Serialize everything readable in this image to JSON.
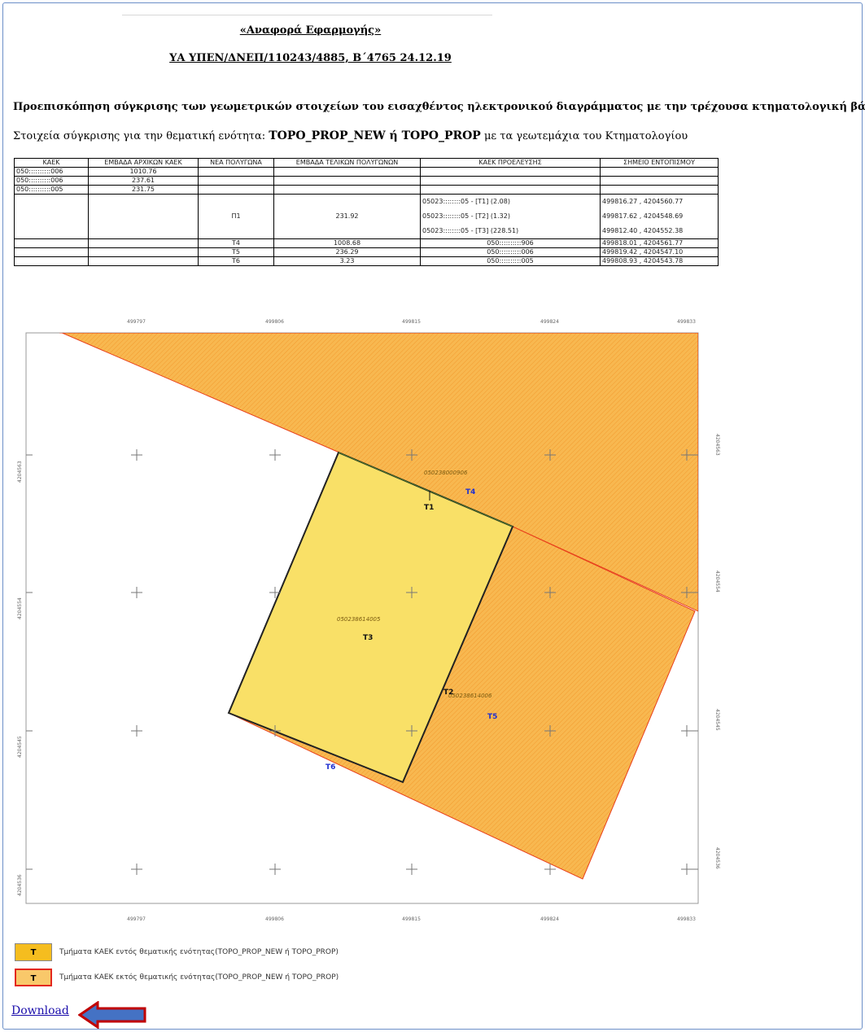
{
  "report": {
    "title": "«Αναφορά Εφαρμογής»",
    "reference": "ΥΑ ΥΠΕΝ/ΔΝΕΠ/110243/4885, Β΄4765 24.12.19",
    "heading": "Προεπισκόπηση σύγκρισης των γεωμετρικών στοιχείων του εισαχθέντος ηλεκτρονικού διαγράμματος με την τρέχουσα κτηματολογική βάση",
    "subheading_prefix": "Στοιχεία σύγκρισης για την θεματική ενότητα: ",
    "subheading_bold": "TOPO_PROP_NEW ή TOPO_PROP",
    "subheading_suffix": " με τα γεωτεμάχια του Κτηματολογίου"
  },
  "table": {
    "headers": [
      "ΚΑΕΚ",
      "ΕΜΒΑΔΑ ΑΡΧΙΚΩΝ ΚΑΕΚ",
      "ΝΕΑ ΠΟΛΥΓΩΝΑ",
      "ΕΜΒΑΔΑ ΤΕΛΙΚΩΝ ΠΟΛΥΓΩΝΩΝ",
      "ΚΑΕΚ ΠΡΟΕΛΕΥΣΗΣ",
      "ΣΗΜΕΙΟ ΕΝΤΟΠΙΣΜΟΥ"
    ],
    "rows": [
      [
        "050::::::::::006",
        "1010.76",
        "",
        "",
        "",
        ""
      ],
      [
        "050::::::::::006",
        "237.61",
        "",
        "",
        "",
        ""
      ],
      [
        "050::::::::::005",
        "231.75",
        "",
        "",
        "",
        ""
      ],
      [
        "",
        "",
        "Π1",
        "231.92",
        [
          "05023::::::::05 - [T1] (2.08)",
          "05023::::::::05 - [T2] (1.32)",
          "05023::::::::05 - [T3] (228.51)"
        ],
        [
          "499816.27 , 4204560.77",
          "499817.62 , 4204548.69",
          "499812.40 , 4204552.38"
        ]
      ],
      [
        "",
        "",
        "T4",
        "1008.68",
        "050::::::::::906",
        "499818.01 , 4204561.77"
      ],
      [
        "",
        "",
        "T5",
        "236.29",
        "050::::::::::006",
        "499819.42 , 4204547.10"
      ],
      [
        "",
        "",
        "T6",
        "3.23",
        "050::::::::::005",
        "499808.93 , 4204543.78"
      ]
    ]
  },
  "map": {
    "ticks_top": [
      "499797",
      "499806",
      "499815",
      "499824",
      "499833"
    ],
    "ticks_bottom": [
      "499797",
      "499806",
      "499815",
      "499824",
      "499833"
    ],
    "ticks_left": [
      "4204563",
      "4204554",
      "4204545",
      "4204536"
    ],
    "ticks_right": [
      "4204563",
      "4204554",
      "4204545",
      "4204536"
    ],
    "labels": {
      "T1": "T1",
      "T2": "T2",
      "T3": "T3",
      "T4": "T4",
      "T5": "T5",
      "T6": "T6",
      "kaek_top": "050238000906",
      "kaek_mid": "050238614005",
      "kaek_right": "050238614006"
    },
    "colors": {
      "inside": "#f5d94a",
      "outside": "#f8b850",
      "outside_border": "#e8401c",
      "blue_label": "#1f2fd0"
    }
  },
  "legend": {
    "item1_symbol": "T",
    "item1_text": "Τμήματα ΚΑΕΚ εντός θεματικής ενότητας(TOPO_PROP_NEW ή TOPO_PROP)",
    "item2_symbol": "T",
    "item2_text": "Τμήματα ΚΑΕΚ εκτός θεματικής ενότητας(TOPO_PROP_NEW ή TOPO_PROP)"
  },
  "links": {
    "download": "Download"
  }
}
